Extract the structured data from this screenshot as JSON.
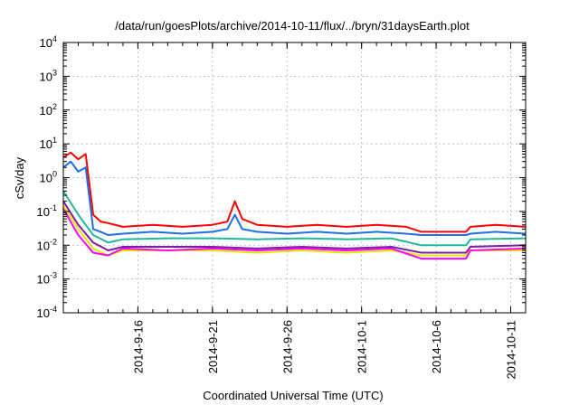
{
  "chart_data": {
    "type": "line",
    "title": "/data/run/goesPlots/archive/2014-10-11/flux/../bryn/31daysEarth.plot",
    "xlabel": "Coordinated Universal Time (UTC)",
    "ylabel": "cSv/day",
    "yscale": "log",
    "ylim": [
      0.0001,
      10000
    ],
    "y_ticks": [
      {
        "value": 0.0001,
        "base": "10",
        "exp": "-4"
      },
      {
        "value": 0.001,
        "base": "10",
        "exp": "-3"
      },
      {
        "value": 0.01,
        "base": "10",
        "exp": "-2"
      },
      {
        "value": 0.1,
        "base": "10",
        "exp": "-1"
      },
      {
        "value": 1,
        "base": "10",
        "exp": "0"
      },
      {
        "value": 10,
        "base": "10",
        "exp": "1"
      },
      {
        "value": 100,
        "base": "10",
        "exp": "2"
      },
      {
        "value": 1000,
        "base": "10",
        "exp": "3"
      },
      {
        "value": 10000,
        "base": "10",
        "exp": "4"
      }
    ],
    "xlim": [
      "2014-09-11",
      "2014-10-12"
    ],
    "x_ticks": [
      {
        "date": "2014-09-16",
        "label": "2014-9-16"
      },
      {
        "date": "2014-09-21",
        "label": "2014-9-21"
      },
      {
        "date": "2014-09-26",
        "label": "2014-9-26"
      },
      {
        "date": "2014-10-01",
        "label": "2014-10-1"
      },
      {
        "date": "2014-10-06",
        "label": "2014-10-6"
      },
      {
        "date": "2014-10-11",
        "label": "2014-10-11"
      }
    ],
    "grid": true,
    "series": [
      {
        "color": "#ff0000",
        "x": [
          "2014-09-11",
          "2014-09-11.5",
          "2014-09-12",
          "2014-09-12.5",
          "2014-09-13",
          "2014-09-13.5",
          "2014-09-14",
          "2014-09-15",
          "2014-09-17",
          "2014-09-19",
          "2014-09-21",
          "2014-09-22",
          "2014-09-22.5",
          "2014-09-23",
          "2014-09-24",
          "2014-09-26",
          "2014-09-28",
          "2014-09-30",
          "2014-10-02",
          "2014-10-04",
          "2014-10-05",
          "2014-10-08",
          "2014-10-08.3",
          "2014-10-10",
          "2014-10-12"
        ],
        "y": [
          4.0,
          5.5,
          3.5,
          5.0,
          0.08,
          0.05,
          0.045,
          0.035,
          0.04,
          0.035,
          0.04,
          0.05,
          0.2,
          0.06,
          0.04,
          0.035,
          0.04,
          0.035,
          0.04,
          0.035,
          0.025,
          0.025,
          0.035,
          0.04,
          0.035
        ]
      },
      {
        "color": "#1e6fe8",
        "x": [
          "2014-09-11",
          "2014-09-11.5",
          "2014-09-12",
          "2014-09-12.5",
          "2014-09-13",
          "2014-09-13.5",
          "2014-09-14",
          "2014-09-15",
          "2014-09-17",
          "2014-09-19",
          "2014-09-21",
          "2014-09-22",
          "2014-09-22.5",
          "2014-09-23",
          "2014-09-24",
          "2014-09-26",
          "2014-09-28",
          "2014-09-30",
          "2014-10-02",
          "2014-10-04",
          "2014-10-05",
          "2014-10-08",
          "2014-10-08.3",
          "2014-10-10",
          "2014-10-12"
        ],
        "y": [
          2.0,
          3.0,
          1.5,
          2.0,
          0.03,
          0.025,
          0.02,
          0.022,
          0.025,
          0.022,
          0.025,
          0.03,
          0.08,
          0.03,
          0.025,
          0.022,
          0.025,
          0.022,
          0.025,
          0.022,
          0.02,
          0.02,
          0.022,
          0.025,
          0.022
        ]
      },
      {
        "color": "#20b89a",
        "x": [
          "2014-09-11",
          "2014-09-12",
          "2014-09-13",
          "2014-09-14",
          "2014-09-15",
          "2014-09-18",
          "2014-09-21",
          "2014-09-24",
          "2014-09-27",
          "2014-09-30",
          "2014-10-03",
          "2014-10-05",
          "2014-10-08",
          "2014-10-08.3",
          "2014-10-12"
        ],
        "y": [
          0.4,
          0.08,
          0.02,
          0.012,
          0.015,
          0.016,
          0.016,
          0.015,
          0.016,
          0.015,
          0.016,
          0.01,
          0.01,
          0.015,
          0.016
        ]
      },
      {
        "color": "#7a1fa0",
        "x": [
          "2014-09-11",
          "2014-09-12",
          "2014-09-13",
          "2014-09-14",
          "2014-09-15",
          "2014-09-18",
          "2014-09-21",
          "2014-09-24",
          "2014-09-27",
          "2014-09-30",
          "2014-10-03",
          "2014-10-05",
          "2014-10-08",
          "2014-10-08.3",
          "2014-10-12"
        ],
        "y": [
          0.2,
          0.04,
          0.012,
          0.007,
          0.009,
          0.009,
          0.009,
          0.008,
          0.009,
          0.008,
          0.009,
          0.006,
          0.006,
          0.009,
          0.01
        ]
      },
      {
        "color": "#e6e600",
        "x": [
          "2014-09-11",
          "2014-09-12",
          "2014-09-13",
          "2014-09-14",
          "2014-09-15",
          "2014-09-18",
          "2014-09-21",
          "2014-09-24",
          "2014-09-27",
          "2014-09-30",
          "2014-10-03",
          "2014-10-05",
          "2014-10-08",
          "2014-10-08.3",
          "2014-10-12"
        ],
        "y": [
          0.15,
          0.03,
          0.008,
          0.005,
          0.007,
          0.007,
          0.007,
          0.006,
          0.007,
          0.006,
          0.007,
          0.005,
          0.005,
          0.007,
          0.007
        ]
      },
      {
        "color": "#ff00ff",
        "x": [
          "2014-09-11",
          "2014-09-12",
          "2014-09-13",
          "2014-09-14",
          "2014-09-15",
          "2014-09-18",
          "2014-09-21",
          "2014-09-24",
          "2014-09-27",
          "2014-09-30",
          "2014-10-03",
          "2014-10-05",
          "2014-10-08",
          "2014-10-08.3",
          "2014-10-12"
        ],
        "y": [
          0.12,
          0.02,
          0.006,
          0.005,
          0.008,
          0.007,
          0.008,
          0.007,
          0.008,
          0.007,
          0.008,
          0.004,
          0.004,
          0.007,
          0.008
        ]
      }
    ]
  }
}
